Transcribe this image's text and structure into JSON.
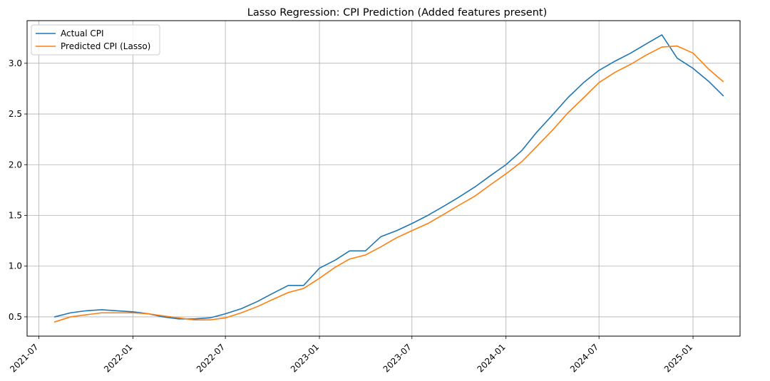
{
  "chart_data": {
    "type": "line",
    "title": "Lasso Regression: CPI Prediction (Added features present)",
    "xlabel": "",
    "ylabel": "",
    "x_ticks": [
      "2021-07",
      "2022-01",
      "2022-07",
      "2023-01",
      "2023-07",
      "2024-01",
      "2024-07",
      "2025-01"
    ],
    "y_ticks": [
      "0.5",
      "1.0",
      "1.5",
      "2.0",
      "2.5",
      "3.0"
    ],
    "xlim": [
      "2021-06-08",
      "2025-04-03"
    ],
    "ylim": [
      0.31,
      3.42
    ],
    "grid": true,
    "legend_position": "upper-left",
    "x": [
      "2021-08",
      "2021-09",
      "2021-10",
      "2021-11",
      "2021-12",
      "2022-01",
      "2022-02",
      "2022-03",
      "2022-04",
      "2022-05",
      "2022-06",
      "2022-07",
      "2022-08",
      "2022-09",
      "2022-10",
      "2022-11",
      "2022-12",
      "2023-01",
      "2023-02",
      "2023-03",
      "2023-04",
      "2023-05",
      "2023-06",
      "2023-07",
      "2023-08",
      "2023-09",
      "2023-10",
      "2023-11",
      "2023-12",
      "2024-01",
      "2024-02",
      "2024-03",
      "2024-04",
      "2024-05",
      "2024-06",
      "2024-07",
      "2024-08",
      "2024-09",
      "2024-10",
      "2024-11",
      "2024-12",
      "2025-01",
      "2025-02",
      "2025-03"
    ],
    "series": [
      {
        "name": "Actual CPI",
        "color": "#1f77b4",
        "values": [
          0.5,
          0.54,
          0.56,
          0.57,
          0.56,
          0.55,
          0.53,
          0.5,
          0.48,
          0.48,
          0.49,
          0.53,
          0.58,
          0.65,
          0.73,
          0.81,
          0.81,
          0.98,
          1.06,
          1.15,
          1.15,
          1.29,
          1.35,
          1.42,
          1.5,
          1.59,
          1.68,
          1.78,
          1.89,
          2.0,
          2.14,
          2.32,
          2.49,
          2.66,
          2.81,
          2.93,
          3.02,
          3.1,
          3.19,
          3.28,
          3.05,
          2.95,
          2.82,
          2.68
        ]
      },
      {
        "name": "Predicted CPI (Lasso)",
        "color": "#ff7f0e",
        "values": [
          0.45,
          0.5,
          0.52,
          0.54,
          0.54,
          0.54,
          0.53,
          0.51,
          0.49,
          0.47,
          0.47,
          0.49,
          0.54,
          0.6,
          0.67,
          0.74,
          0.78,
          0.88,
          0.99,
          1.07,
          1.11,
          1.19,
          1.28,
          1.35,
          1.42,
          1.51,
          1.6,
          1.69,
          1.8,
          1.91,
          2.03,
          2.18,
          2.34,
          2.51,
          2.66,
          2.81,
          2.91,
          2.99,
          3.08,
          3.16,
          3.17,
          3.1,
          2.94,
          2.82
        ]
      }
    ]
  }
}
